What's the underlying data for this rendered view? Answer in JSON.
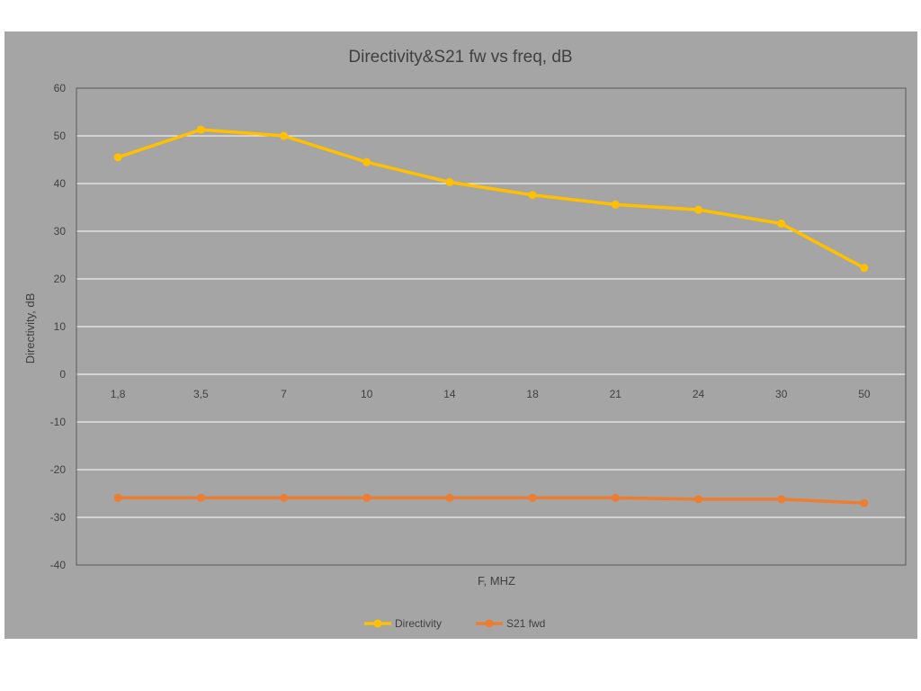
{
  "chart_data": {
    "type": "line",
    "title": "Directivity&S21 fw vs freq, dB",
    "xlabel": "F, MHZ",
    "ylabel": "Directivity, dB",
    "categories": [
      "1,8",
      "3,5",
      "7",
      "10",
      "14",
      "18",
      "21",
      "24",
      "30",
      "50"
    ],
    "ylim": [
      -40,
      60
    ],
    "yticks": [
      60,
      50,
      40,
      30,
      20,
      10,
      0,
      -10,
      -20,
      -30,
      -40
    ],
    "grid": true,
    "legend": "bottom",
    "series": [
      {
        "name": "Directivity",
        "color": "#ffc000",
        "values": [
          45.5,
          51.3,
          50.0,
          44.5,
          40.3,
          37.6,
          35.6,
          34.5,
          31.6,
          22.3
        ]
      },
      {
        "name": "S21 fwd",
        "color": "#ed7d31",
        "values": [
          -25.9,
          -25.9,
          -25.9,
          -25.9,
          -25.9,
          -25.9,
          -25.9,
          -26.2,
          -26.2,
          -27.0
        ]
      }
    ],
    "colors": {
      "background": "#a5a5a5",
      "plot_border": "#595959",
      "grid": "#ffffff",
      "text": "#404040"
    }
  }
}
